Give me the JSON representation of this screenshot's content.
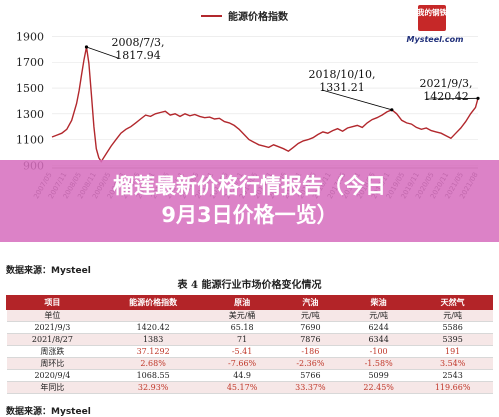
{
  "banner": {
    "line1": "榴莲最新价格行情报告（今日",
    "line2": "9月3日价格一览）"
  },
  "chart_data": {
    "type": "line",
    "legend": "能源价格指数",
    "logo_text": "我的钢铁",
    "logo_caption": "Mysteel.com",
    "yticks": [
      "1900",
      "1700",
      "1500",
      "1300",
      "1100",
      "900"
    ],
    "ylim": [
      880,
      1950
    ],
    "xticks": [
      "2007/05",
      "2007/11",
      "2008/05",
      "2008/11",
      "2009/05",
      "2009/11",
      "2010/05",
      "2010/11",
      "2011/05",
      "2011/11",
      "2012/05",
      "2012/11",
      "2013/05",
      "2013/11",
      "2014/05",
      "2014/11",
      "2015/05",
      "2015/11",
      "2016/05",
      "2016/11",
      "2017/05",
      "2017/11",
      "2018/05",
      "2018/11",
      "2019/05",
      "2019/11",
      "2020/05",
      "2020/11",
      "2021/05",
      "2021/08"
    ],
    "annotations": [
      {
        "date_label": "2008/7/3,",
        "value_label": "1817.94",
        "x": 14,
        "y": 1817.94
      },
      {
        "date_label": "2018/10/10,",
        "value_label": "1331.21",
        "x": 138,
        "y": 1331.21
      },
      {
        "date_label": "2021/9/3,",
        "value_label": "1420.42",
        "x": 173,
        "y": 1420.42
      }
    ],
    "series": [
      {
        "values": [
          [
            0,
            1120
          ],
          [
            2,
            1135
          ],
          [
            4,
            1150
          ],
          [
            6,
            1180
          ],
          [
            8,
            1250
          ],
          [
            10,
            1380
          ],
          [
            11,
            1480
          ],
          [
            12,
            1600
          ],
          [
            13,
            1720
          ],
          [
            14,
            1817.94
          ],
          [
            15,
            1690
          ],
          [
            16,
            1450
          ],
          [
            17,
            1200
          ],
          [
            18,
            1030
          ],
          [
            19,
            960
          ],
          [
            20,
            930
          ],
          [
            22,
            990
          ],
          [
            24,
            1050
          ],
          [
            26,
            1100
          ],
          [
            28,
            1150
          ],
          [
            30,
            1180
          ],
          [
            32,
            1200
          ],
          [
            34,
            1230
          ],
          [
            36,
            1260
          ],
          [
            38,
            1290
          ],
          [
            40,
            1280
          ],
          [
            42,
            1300
          ],
          [
            44,
            1310
          ],
          [
            46,
            1320
          ],
          [
            48,
            1290
          ],
          [
            50,
            1300
          ],
          [
            52,
            1280
          ],
          [
            54,
            1300
          ],
          [
            56,
            1285
          ],
          [
            58,
            1295
          ],
          [
            60,
            1280
          ],
          [
            62,
            1270
          ],
          [
            64,
            1275
          ],
          [
            66,
            1260
          ],
          [
            68,
            1265
          ],
          [
            70,
            1240
          ],
          [
            72,
            1230
          ],
          [
            74,
            1210
          ],
          [
            76,
            1180
          ],
          [
            78,
            1140
          ],
          [
            80,
            1100
          ],
          [
            82,
            1080
          ],
          [
            84,
            1060
          ],
          [
            86,
            1050
          ],
          [
            88,
            1040
          ],
          [
            90,
            1060
          ],
          [
            92,
            1045
          ],
          [
            94,
            1030
          ],
          [
            96,
            1010
          ],
          [
            98,
            1040
          ],
          [
            100,
            1070
          ],
          [
            102,
            1090
          ],
          [
            104,
            1100
          ],
          [
            106,
            1115
          ],
          [
            108,
            1140
          ],
          [
            110,
            1160
          ],
          [
            112,
            1150
          ],
          [
            114,
            1170
          ],
          [
            116,
            1185
          ],
          [
            118,
            1165
          ],
          [
            120,
            1190
          ],
          [
            122,
            1200
          ],
          [
            124,
            1210
          ],
          [
            126,
            1195
          ],
          [
            128,
            1230
          ],
          [
            130,
            1255
          ],
          [
            132,
            1270
          ],
          [
            134,
            1290
          ],
          [
            136,
            1315
          ],
          [
            138,
            1331.21
          ],
          [
            140,
            1300
          ],
          [
            142,
            1250
          ],
          [
            144,
            1230
          ],
          [
            146,
            1220
          ],
          [
            148,
            1195
          ],
          [
            150,
            1180
          ],
          [
            152,
            1190
          ],
          [
            154,
            1170
          ],
          [
            156,
            1160
          ],
          [
            158,
            1150
          ],
          [
            160,
            1130
          ],
          [
            162,
            1110
          ],
          [
            164,
            1150
          ],
          [
            166,
            1190
          ],
          [
            168,
            1240
          ],
          [
            170,
            1300
          ],
          [
            172,
            1350
          ],
          [
            173,
            1420.42
          ]
        ]
      }
    ]
  },
  "source_label": "数据来源：Mysteel",
  "table": {
    "title": "表 4 能源行业市场价格变化情况",
    "headers": [
      "项目",
      "能源价格指数",
      "原油",
      "汽油",
      "柴油",
      "天然气"
    ],
    "rows": [
      [
        "单位",
        "",
        "美元/桶",
        "元/吨",
        "元/吨",
        "元/吨"
      ],
      [
        "2021/9/3",
        "1420.42",
        "65.18",
        "7690",
        "6244",
        "5586"
      ],
      [
        "2021/8/27",
        "1383",
        "71",
        "7876",
        "6344",
        "5395"
      ],
      [
        "周涨跌",
        "37.1292",
        "-5.41",
        "-186",
        "-100",
        "191"
      ],
      [
        "周环比",
        "2.68%",
        "-7.66%",
        "-2.36%",
        "-1.58%",
        "3.54%"
      ],
      [
        "2020/9/4",
        "1068.55",
        "44.9",
        "5766",
        "5099",
        "2543"
      ],
      [
        "年同比",
        "32.93%",
        "45.17%",
        "33.37%",
        "22.45%",
        "119.66%"
      ]
    ]
  },
  "source_label_2": "数据来源：Mysteel"
}
